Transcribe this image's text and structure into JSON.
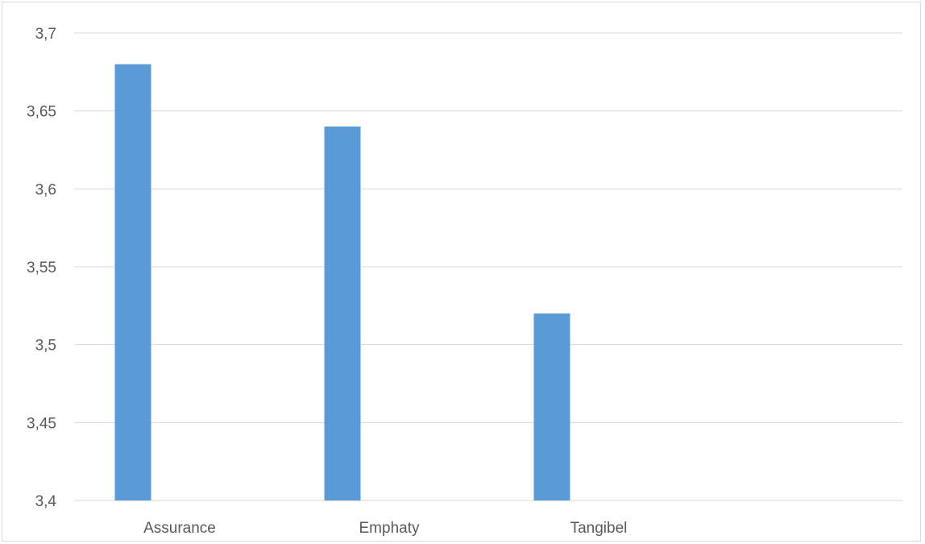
{
  "chart_data": {
    "type": "bar",
    "categories": [
      "Assurance",
      "Emphaty",
      "Tangibel"
    ],
    "values": [
      3.68,
      3.64,
      3.52
    ],
    "ylim": [
      3.4,
      3.7
    ],
    "yticks": [
      "3,4",
      "3,45",
      "3,5",
      "3,55",
      "3,6",
      "3,65",
      "3,7"
    ],
    "grid": true,
    "legend": "none",
    "bar_color": "#5b9bd5",
    "grid_color": "#d9d9d9",
    "label_color": "#595959"
  }
}
